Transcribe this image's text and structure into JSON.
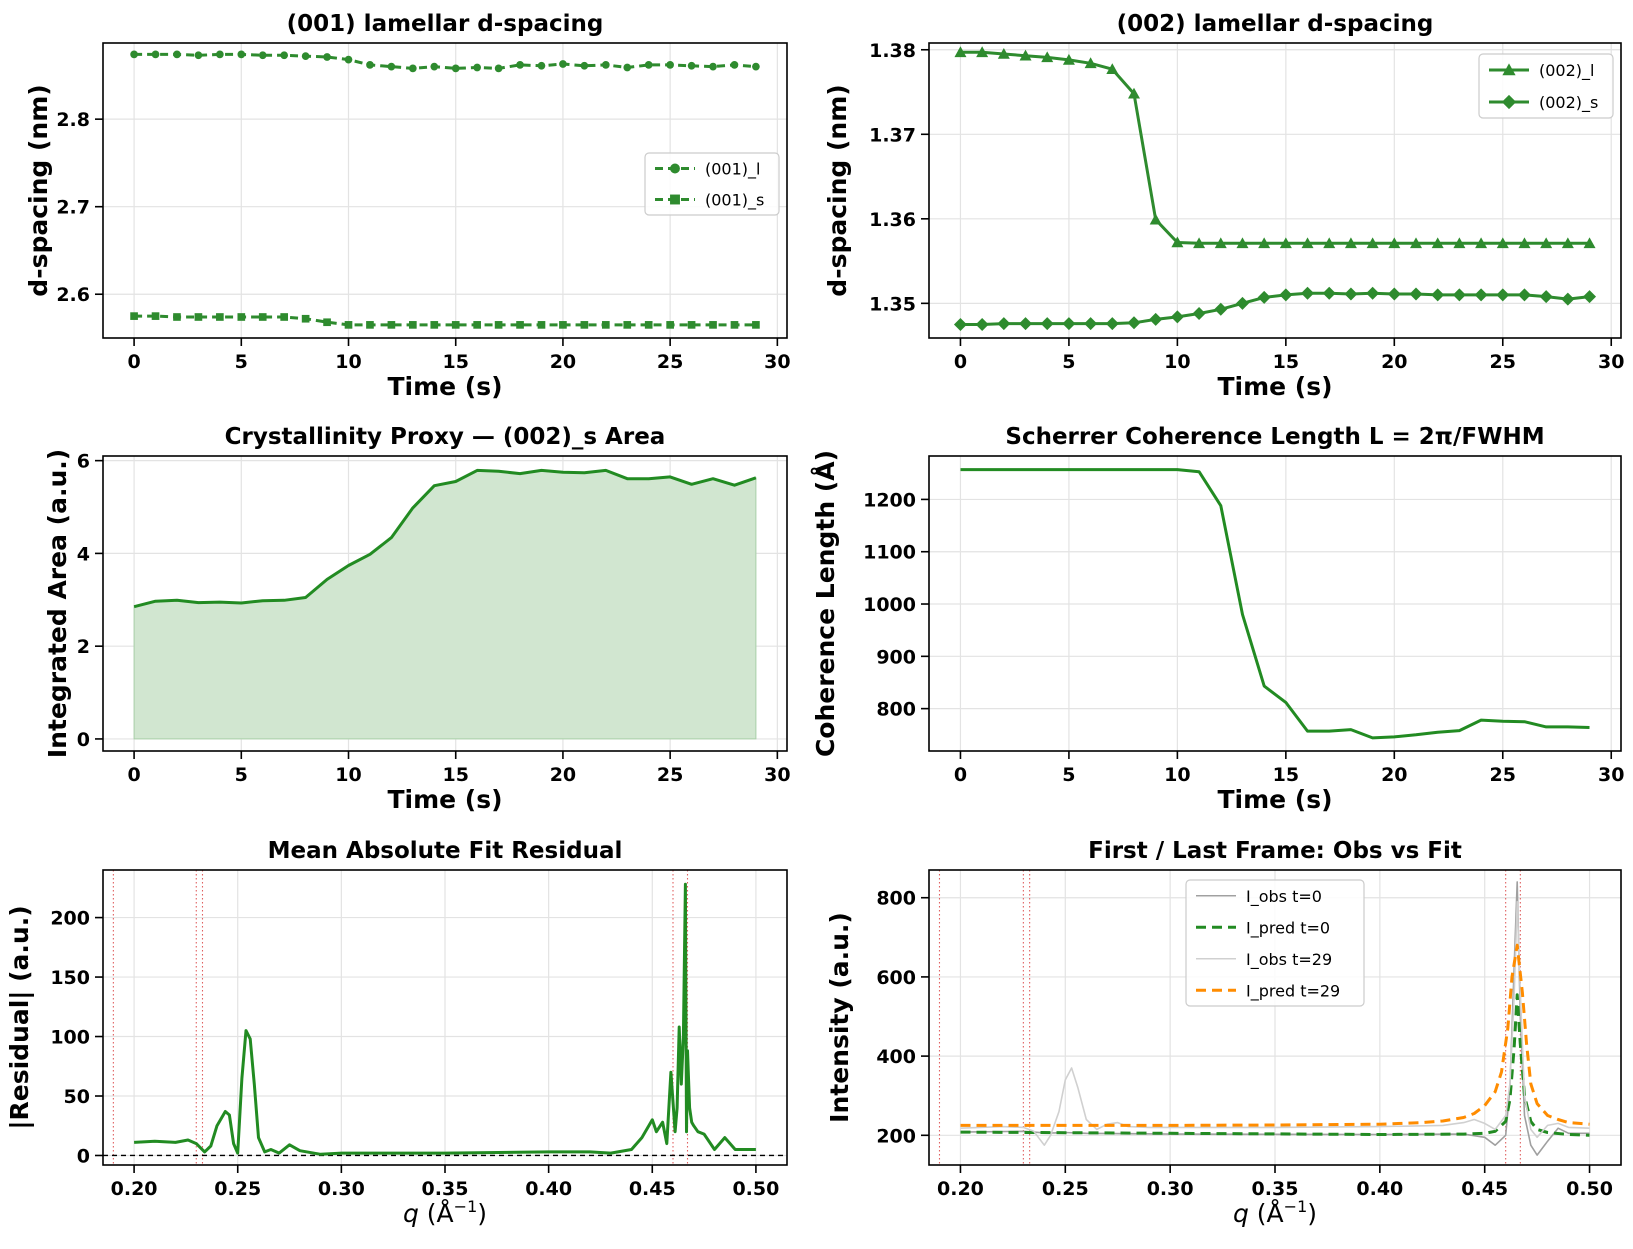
{
  "chart_data": [
    {
      "id": "p1",
      "type": "line",
      "title": "(001) lamellar d-spacing",
      "xlabel": "Time (s)",
      "ylabel": "d-spacing (nm)",
      "xlim": [
        -1.45,
        30.45
      ],
      "ylim": [
        2.55,
        2.887
      ],
      "xticks": [
        0,
        5,
        10,
        15,
        20,
        25,
        30
      ],
      "yticks": [
        2.6,
        2.7,
        2.8
      ],
      "grid": true,
      "legend": "center-right",
      "series": [
        {
          "name": "(001)_l",
          "color": "#2e8b2e",
          "dash": "8,5",
          "marker": "circle",
          "x": [
            0,
            1,
            2,
            3,
            4,
            5,
            6,
            7,
            8,
            9,
            10,
            11,
            12,
            13,
            14,
            15,
            16,
            17,
            18,
            19,
            20,
            21,
            22,
            23,
            24,
            25,
            26,
            27,
            28,
            29
          ],
          "y": [
            2.874,
            2.874,
            2.874,
            2.873,
            2.874,
            2.874,
            2.873,
            2.873,
            2.872,
            2.871,
            2.868,
            2.862,
            2.86,
            2.858,
            2.86,
            2.858,
            2.859,
            2.858,
            2.862,
            2.861,
            2.863,
            2.861,
            2.862,
            2.859,
            2.862,
            2.862,
            2.861,
            2.86,
            2.862,
            2.86
          ]
        },
        {
          "name": "(001)_s",
          "color": "#2e8b2e",
          "dash": "8,5",
          "marker": "square",
          "x": [
            0,
            1,
            2,
            3,
            4,
            5,
            6,
            7,
            8,
            9,
            10,
            11,
            12,
            13,
            14,
            15,
            16,
            17,
            18,
            19,
            20,
            21,
            22,
            23,
            24,
            25,
            26,
            27,
            28,
            29
          ],
          "y": [
            2.575,
            2.575,
            2.574,
            2.574,
            2.574,
            2.574,
            2.574,
            2.574,
            2.572,
            2.568,
            2.565,
            2.565,
            2.565,
            2.565,
            2.565,
            2.565,
            2.565,
            2.565,
            2.565,
            2.565,
            2.565,
            2.565,
            2.565,
            2.565,
            2.565,
            2.565,
            2.565,
            2.565,
            2.565,
            2.565
          ]
        }
      ]
    },
    {
      "id": "p2",
      "type": "line",
      "title": "(002) lamellar d-spacing",
      "xlabel": "Time (s)",
      "ylabel": "d-spacing (nm)",
      "xlim": [
        -1.45,
        30.45
      ],
      "ylim": [
        1.3459,
        1.3808
      ],
      "xticks": [
        0,
        5,
        10,
        15,
        20,
        25,
        30
      ],
      "yticks": [
        1.35,
        1.36,
        1.37,
        1.38
      ],
      "ytick_labels": [
        "1.35",
        "1.36",
        "1.37",
        "1.38"
      ],
      "grid": true,
      "legend": "top-right",
      "series": [
        {
          "name": "(002)_l",
          "color": "#2e8b2e",
          "dash": "",
          "marker": "triangle",
          "x": [
            0,
            1,
            2,
            3,
            4,
            5,
            6,
            7,
            8,
            9,
            10,
            11,
            12,
            13,
            14,
            15,
            16,
            17,
            18,
            19,
            20,
            21,
            22,
            23,
            24,
            25,
            26,
            27,
            28,
            29
          ],
          "y": [
            1.3797,
            1.3797,
            1.3795,
            1.3793,
            1.3791,
            1.3788,
            1.3784,
            1.3777,
            1.3748,
            1.3599,
            1.3572,
            1.3571,
            1.3571,
            1.3571,
            1.3571,
            1.3571,
            1.3571,
            1.3571,
            1.3571,
            1.3571,
            1.3571,
            1.3571,
            1.3571,
            1.3571,
            1.3571,
            1.3571,
            1.3571,
            1.3571,
            1.3571,
            1.3571
          ]
        },
        {
          "name": "(002)_s",
          "color": "#2e8b2e",
          "dash": "",
          "marker": "diamond",
          "x": [
            0,
            1,
            2,
            3,
            4,
            5,
            6,
            7,
            8,
            9,
            10,
            11,
            12,
            13,
            14,
            15,
            16,
            17,
            18,
            19,
            20,
            21,
            22,
            23,
            24,
            25,
            26,
            27,
            28,
            29
          ],
          "y": [
            1.3475,
            1.3475,
            1.3476,
            1.3476,
            1.3476,
            1.3476,
            1.3476,
            1.3476,
            1.3477,
            1.3481,
            1.3484,
            1.3488,
            1.3493,
            1.35,
            1.3507,
            1.351,
            1.3512,
            1.3512,
            1.3511,
            1.3512,
            1.3511,
            1.3511,
            1.351,
            1.351,
            1.351,
            1.351,
            1.351,
            1.3508,
            1.3505,
            1.3508
          ]
        }
      ]
    },
    {
      "id": "p3",
      "type": "area",
      "title": "Crystallinity Proxy — (002)_s Area",
      "xlabel": "Time (s)",
      "ylabel": "Integrated Area (a.u.)",
      "xlim": [
        -1.45,
        30.45
      ],
      "ylim": [
        -0.26,
        6.1
      ],
      "xticks": [
        0,
        5,
        10,
        15,
        20,
        25,
        30
      ],
      "yticks": [
        0,
        2,
        4,
        6
      ],
      "grid": true,
      "series": [
        {
          "color": "#228b22",
          "fill": "#d1e6d0",
          "x": [
            0,
            1,
            2,
            3,
            4,
            5,
            6,
            7,
            8,
            9,
            10,
            11,
            12,
            13,
            14,
            15,
            16,
            17,
            18,
            19,
            20,
            21,
            22,
            23,
            24,
            25,
            26,
            27,
            28,
            29
          ],
          "y": [
            2.85,
            2.97,
            2.99,
            2.94,
            2.95,
            2.93,
            2.98,
            2.99,
            3.05,
            3.44,
            3.74,
            3.98,
            4.34,
            4.98,
            5.46,
            5.55,
            5.79,
            5.77,
            5.72,
            5.79,
            5.75,
            5.74,
            5.79,
            5.61,
            5.61,
            5.65,
            5.49,
            5.61,
            5.47,
            5.63
          ]
        }
      ]
    },
    {
      "id": "p4",
      "type": "line",
      "title": "Scherrer Coherence Length L = 2π/FWHM",
      "xlabel": "Time (s)",
      "ylabel": "Coherence Length (Å)",
      "xlim": [
        -1.45,
        30.45
      ],
      "ylim": [
        719,
        1283
      ],
      "xticks": [
        0,
        5,
        10,
        15,
        20,
        25,
        30
      ],
      "yticks": [
        800,
        900,
        1000,
        1100,
        1200
      ],
      "grid": true,
      "series": [
        {
          "color": "#228b22",
          "dash": "",
          "x": [
            0,
            1,
            2,
            3,
            4,
            5,
            6,
            7,
            8,
            9,
            10,
            11,
            12,
            13,
            14,
            15,
            16,
            17,
            18,
            19,
            20,
            21,
            22,
            23,
            24,
            25,
            26,
            27,
            28,
            29
          ],
          "y": [
            1257,
            1257,
            1257,
            1257,
            1257,
            1257,
            1257,
            1257,
            1257,
            1257,
            1257,
            1253,
            1188,
            980,
            843,
            812,
            757,
            757,
            760,
            744,
            746,
            750,
            755,
            758,
            778,
            776,
            775,
            765,
            765,
            764
          ]
        }
      ]
    },
    {
      "id": "p5",
      "type": "line",
      "title": "Mean Absolute Fit Residual",
      "xlabel_q": "q",
      "xlabel_unit": "(Å",
      "xlabel_sup": "−1",
      "xlabel_close": ")",
      "ylabel": "|Residual| (a.u.)",
      "xlim": [
        0.185,
        0.515
      ],
      "ylim": [
        -8,
        240
      ],
      "xticks": [
        0.2,
        0.25,
        0.3,
        0.35,
        0.4,
        0.45,
        0.5
      ],
      "xtick_labels": [
        "0.20",
        "0.25",
        "0.30",
        "0.35",
        "0.40",
        "0.45",
        "0.50"
      ],
      "yticks": [
        0,
        50,
        100,
        150,
        200
      ],
      "grid": true,
      "vlines": [
        0.19,
        0.23,
        0.233,
        0.46,
        0.467
      ],
      "hline": 0,
      "series": [
        {
          "color": "#228b22",
          "dash": "",
          "x": [
            0.2,
            0.21,
            0.22,
            0.226,
            0.23,
            0.234,
            0.237,
            0.24,
            0.244,
            0.246,
            0.248,
            0.25,
            0.252,
            0.254,
            0.256,
            0.258,
            0.26,
            0.263,
            0.266,
            0.27,
            0.275,
            0.28,
            0.29,
            0.3,
            0.35,
            0.4,
            0.42,
            0.43,
            0.44,
            0.445,
            0.45,
            0.452,
            0.455,
            0.457,
            0.459,
            0.461,
            0.462,
            0.463,
            0.464,
            0.465,
            0.466,
            0.4665,
            0.467,
            0.468,
            0.469,
            0.47,
            0.472,
            0.475,
            0.48,
            0.485,
            0.49,
            0.5
          ],
          "y": [
            11,
            12,
            11,
            13,
            10,
            3,
            8,
            25,
            37,
            34,
            10,
            2,
            65,
            105,
            98,
            60,
            15,
            3,
            5,
            2,
            9,
            4,
            1,
            2,
            2,
            3,
            3,
            2,
            5,
            15,
            30,
            20,
            28,
            10,
            70,
            20,
            40,
            108,
            60,
            100,
            228,
            20,
            88,
            40,
            28,
            25,
            20,
            18,
            5,
            15,
            5,
            5
          ]
        }
      ]
    },
    {
      "id": "p6",
      "type": "line",
      "title": "First / Last Frame: Obs vs Fit",
      "xlabel_q": "q",
      "xlabel_unit": "(Å",
      "xlabel_sup": "−1",
      "xlabel_close": ")",
      "ylabel": "Intensity (a.u.)",
      "xlim": [
        0.185,
        0.515
      ],
      "ylim": [
        125,
        870
      ],
      "xticks": [
        0.2,
        0.25,
        0.3,
        0.35,
        0.4,
        0.45,
        0.5
      ],
      "xtick_labels": [
        "0.20",
        "0.25",
        "0.30",
        "0.35",
        "0.40",
        "0.45",
        "0.50"
      ],
      "yticks": [
        200,
        400,
        600,
        800
      ],
      "grid": true,
      "legend": "top-center",
      "vlines": [
        0.19,
        0.23,
        0.233,
        0.46,
        0.467
      ],
      "series": [
        {
          "name": "I_obs t=0",
          "color": "#a0a0a0",
          "width": 1.6,
          "dash": "",
          "x": [
            0.2,
            0.23,
            0.235,
            0.24,
            0.245,
            0.25,
            0.26,
            0.3,
            0.4,
            0.44,
            0.45,
            0.455,
            0.46,
            0.462,
            0.464,
            0.4655,
            0.467,
            0.469,
            0.472,
            0.475,
            0.48,
            0.485,
            0.49,
            0.5
          ],
          "y": [
            208,
            210,
            208,
            206,
            206,
            207,
            205,
            203,
            202,
            203,
            195,
            175,
            200,
            320,
            620,
            840,
            500,
            250,
            175,
            150,
            185,
            218,
            205,
            205
          ]
        },
        {
          "name": "I_pred t=0",
          "color": "#228b22",
          "width": 3,
          "dash": "10,6",
          "x": [
            0.2,
            0.3,
            0.4,
            0.44,
            0.45,
            0.455,
            0.46,
            0.462,
            0.464,
            0.4655,
            0.467,
            0.469,
            0.472,
            0.475,
            0.48,
            0.49,
            0.5
          ],
          "y": [
            208,
            205,
            202,
            203,
            205,
            210,
            235,
            290,
            420,
            555,
            430,
            300,
            235,
            215,
            207,
            202,
            200
          ]
        },
        {
          "name": "I_obs t=29",
          "color": "#d0d0d0",
          "width": 1.6,
          "dash": "",
          "x": [
            0.2,
            0.22,
            0.23,
            0.235,
            0.24,
            0.243,
            0.247,
            0.25,
            0.253,
            0.256,
            0.26,
            0.265,
            0.27,
            0.275,
            0.28,
            0.29,
            0.3,
            0.35,
            0.4,
            0.43,
            0.44,
            0.445,
            0.45,
            0.455,
            0.46,
            0.462,
            0.464,
            0.4655,
            0.467,
            0.469,
            0.472,
            0.475,
            0.48,
            0.485,
            0.49,
            0.5
          ],
          "y": [
            218,
            222,
            220,
            210,
            175,
            200,
            260,
            340,
            370,
            320,
            240,
            215,
            228,
            232,
            222,
            220,
            220,
            220,
            222,
            225,
            232,
            240,
            230,
            215,
            250,
            330,
            550,
            790,
            560,
            300,
            215,
            195,
            225,
            230,
            220,
            218
          ]
        },
        {
          "name": "I_pred t=29",
          "color": "#ff8c00",
          "width": 3,
          "dash": "10,6",
          "x": [
            0.2,
            0.3,
            0.35,
            0.4,
            0.42,
            0.43,
            0.44,
            0.445,
            0.45,
            0.455,
            0.458,
            0.461,
            0.463,
            0.4655,
            0.468,
            0.47,
            0.472,
            0.475,
            0.48,
            0.485,
            0.49,
            0.5
          ],
          "y": [
            225,
            225,
            226,
            228,
            232,
            236,
            245,
            255,
            275,
            310,
            360,
            470,
            600,
            680,
            560,
            430,
            330,
            280,
            250,
            240,
            232,
            228
          ]
        }
      ]
    }
  ]
}
